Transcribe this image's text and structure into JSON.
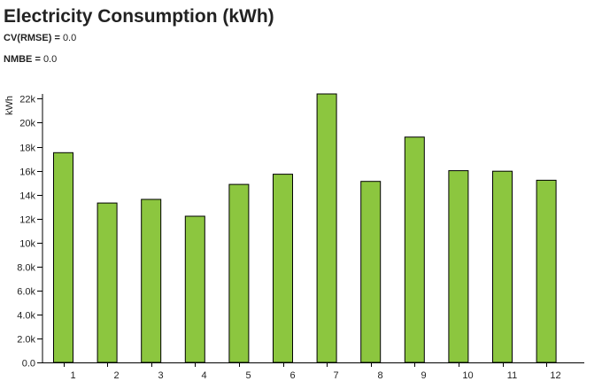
{
  "header": {
    "title": "Electricity Consumption (kWh)",
    "cv_label": "CV(RMSE) =",
    "cv_value": "0.0",
    "nmbe_label": "NMBE =",
    "nmbe_value": "0.0"
  },
  "colors": {
    "bar_fill": "#8cc63f",
    "bar_stroke": "#000000",
    "axis": "#000000",
    "text": "#222222"
  },
  "chart_data": {
    "type": "bar",
    "title": "Electricity Consumption (kWh)",
    "xlabel": "",
    "ylabel": "kWh",
    "categories": [
      "1",
      "2",
      "3",
      "4",
      "5",
      "6",
      "7",
      "8",
      "9",
      "10",
      "11",
      "12"
    ],
    "values": [
      17500,
      13300,
      13600,
      12200,
      14850,
      15700,
      22400,
      15100,
      18800,
      16000,
      15950,
      15200
    ],
    "ylim": [
      0,
      22400
    ],
    "yticks": [
      0,
      2000,
      4000,
      6000,
      8000,
      10000,
      12000,
      14000,
      16000,
      18000,
      20000,
      22000
    ],
    "ytick_labels": [
      "0.0",
      "2.0k",
      "4.0k",
      "6.0k",
      "8.0k",
      "10k",
      "12k",
      "14k",
      "16k",
      "18k",
      "20k",
      "22k"
    ],
    "grid": false,
    "legend": "none"
  }
}
